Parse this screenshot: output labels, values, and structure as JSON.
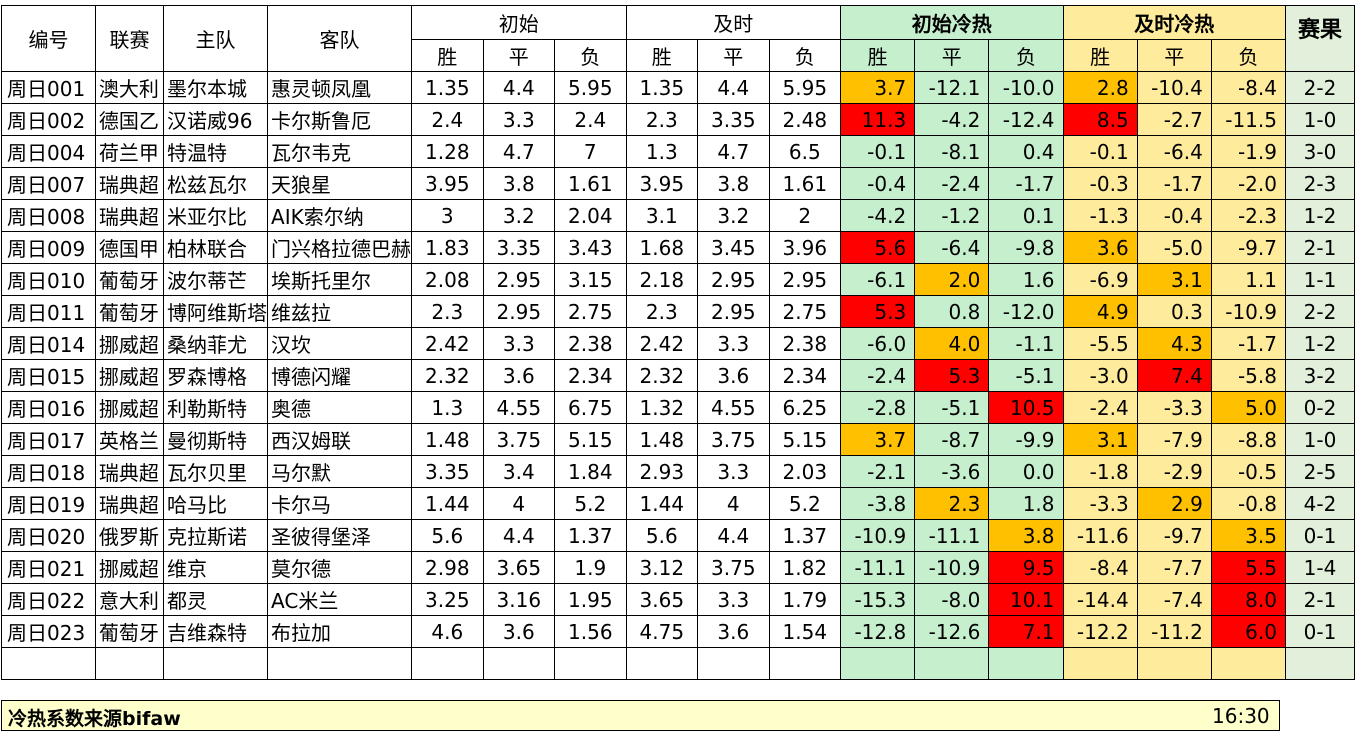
{
  "headers": {
    "id": "编号",
    "league": "联赛",
    "home": "主队",
    "away": "客队",
    "initial": "初始",
    "live": "及时",
    "initial_heat": "初始冷热",
    "live_heat": "及时冷热",
    "result": "赛果",
    "win": "胜",
    "draw": "平",
    "loss": "负"
  },
  "colors": {
    "green": "#c6efce",
    "yellow": "#ffeb9c",
    "orange": "#ffc000",
    "red": "#ff0000",
    "result_bg": "#e2efda",
    "footer_bg": "#ffffcc"
  },
  "rows": [
    {
      "id": "周日001",
      "league": "澳大利",
      "home": "墨尔本城",
      "away": "惠灵顿凤凰",
      "init": [
        "1.35",
        "4.4",
        "5.95"
      ],
      "live": [
        "1.35",
        "4.4",
        "5.95"
      ],
      "iheat": [
        "3.7",
        "-12.1",
        "-10.0"
      ],
      "icol": [
        "orange",
        "green",
        "green"
      ],
      "lheat": [
        "2.8",
        "-10.4",
        "-8.4"
      ],
      "lcol": [
        "orange",
        "yellow",
        "yellow"
      ],
      "result": "2-2"
    },
    {
      "id": "周日002",
      "league": "德国乙",
      "home": "汉诺威96",
      "away": "卡尔斯鲁厄",
      "init": [
        "2.4",
        "3.3",
        "2.4"
      ],
      "live": [
        "2.3",
        "3.35",
        "2.48"
      ],
      "iheat": [
        "11.3",
        "-4.2",
        "-12.4"
      ],
      "icol": [
        "red",
        "green",
        "green"
      ],
      "lheat": [
        "8.5",
        "-2.7",
        "-11.5"
      ],
      "lcol": [
        "red",
        "yellow",
        "yellow"
      ],
      "result": "1-0"
    },
    {
      "id": "周日004",
      "league": "荷兰甲",
      "home": "特温特",
      "away": "瓦尔韦克",
      "init": [
        "1.28",
        "4.7",
        "7"
      ],
      "live": [
        "1.3",
        "4.7",
        "6.5"
      ],
      "iheat": [
        "-0.1",
        "-8.1",
        "0.4"
      ],
      "icol": [
        "green",
        "green",
        "green"
      ],
      "lheat": [
        "-0.1",
        "-6.4",
        "-1.9"
      ],
      "lcol": [
        "yellow",
        "yellow",
        "yellow"
      ],
      "result": "3-0"
    },
    {
      "id": "周日007",
      "league": "瑞典超",
      "home": "松兹瓦尔",
      "away": "天狼星",
      "init": [
        "3.95",
        "3.8",
        "1.61"
      ],
      "live": [
        "3.95",
        "3.8",
        "1.61"
      ],
      "iheat": [
        "-0.4",
        "-2.4",
        "-1.7"
      ],
      "icol": [
        "green",
        "green",
        "green"
      ],
      "lheat": [
        "-0.3",
        "-1.7",
        "-2.0"
      ],
      "lcol": [
        "yellow",
        "yellow",
        "yellow"
      ],
      "result": "2-3"
    },
    {
      "id": "周日008",
      "league": "瑞典超",
      "home": "米亚尔比",
      "away": "AIK索尔纳",
      "init": [
        "3",
        "3.2",
        "2.04"
      ],
      "live": [
        "3.1",
        "3.2",
        "2"
      ],
      "iheat": [
        "-4.2",
        "-1.2",
        "0.1"
      ],
      "icol": [
        "green",
        "green",
        "green"
      ],
      "lheat": [
        "-1.3",
        "-0.4",
        "-2.3"
      ],
      "lcol": [
        "yellow",
        "yellow",
        "yellow"
      ],
      "result": "1-2"
    },
    {
      "id": "周日009",
      "league": "德国甲",
      "home": "柏林联合",
      "away": "门兴格拉德巴赫",
      "init": [
        "1.83",
        "3.35",
        "3.43"
      ],
      "live": [
        "1.68",
        "3.45",
        "3.96"
      ],
      "iheat": [
        "5.6",
        "-6.4",
        "-9.8"
      ],
      "icol": [
        "red",
        "green",
        "green"
      ],
      "lheat": [
        "3.6",
        "-5.0",
        "-9.7"
      ],
      "lcol": [
        "orange",
        "yellow",
        "yellow"
      ],
      "result": "2-1"
    },
    {
      "id": "周日010",
      "league": "葡萄牙",
      "home": "波尔蒂芒",
      "away": "埃斯托里尔",
      "init": [
        "2.08",
        "2.95",
        "3.15"
      ],
      "live": [
        "2.18",
        "2.95",
        "2.95"
      ],
      "iheat": [
        "-6.1",
        "2.0",
        "1.6"
      ],
      "icol": [
        "green",
        "orange",
        "green"
      ],
      "lheat": [
        "-6.9",
        "3.1",
        "1.1"
      ],
      "lcol": [
        "yellow",
        "orange",
        "yellow"
      ],
      "result": "1-1"
    },
    {
      "id": "周日011",
      "league": "葡萄牙",
      "home": "博阿维斯塔",
      "away": "维兹拉",
      "init": [
        "2.3",
        "2.95",
        "2.75"
      ],
      "live": [
        "2.3",
        "2.95",
        "2.75"
      ],
      "iheat": [
        "5.3",
        "0.8",
        "-12.0"
      ],
      "icol": [
        "red",
        "green",
        "green"
      ],
      "lheat": [
        "4.9",
        "0.3",
        "-10.9"
      ],
      "lcol": [
        "orange",
        "yellow",
        "yellow"
      ],
      "result": "2-2"
    },
    {
      "id": "周日014",
      "league": "挪威超",
      "home": "桑纳菲尤",
      "away": "汉坎",
      "init": [
        "2.42",
        "3.3",
        "2.38"
      ],
      "live": [
        "2.42",
        "3.3",
        "2.38"
      ],
      "iheat": [
        "-6.0",
        "4.0",
        "-1.1"
      ],
      "icol": [
        "green",
        "orange",
        "green"
      ],
      "lheat": [
        "-5.5",
        "4.3",
        "-1.7"
      ],
      "lcol": [
        "yellow",
        "orange",
        "yellow"
      ],
      "result": "1-2"
    },
    {
      "id": "周日015",
      "league": "挪威超",
      "home": "罗森博格",
      "away": "博德闪耀",
      "init": [
        "2.32",
        "3.6",
        "2.34"
      ],
      "live": [
        "2.32",
        "3.6",
        "2.34"
      ],
      "iheat": [
        "-2.4",
        "5.3",
        "-5.1"
      ],
      "icol": [
        "green",
        "red",
        "green"
      ],
      "lheat": [
        "-3.0",
        "7.4",
        "-5.8"
      ],
      "lcol": [
        "yellow",
        "red",
        "yellow"
      ],
      "result": "3-2"
    },
    {
      "id": "周日016",
      "league": "挪威超",
      "home": "利勒斯特",
      "away": "奥德",
      "init": [
        "1.3",
        "4.55",
        "6.75"
      ],
      "live": [
        "1.32",
        "4.55",
        "6.25"
      ],
      "iheat": [
        "-2.8",
        "-5.1",
        "10.5"
      ],
      "icol": [
        "green",
        "green",
        "red"
      ],
      "lheat": [
        "-2.4",
        "-3.3",
        "5.0"
      ],
      "lcol": [
        "yellow",
        "yellow",
        "orange"
      ],
      "result": "0-2"
    },
    {
      "id": "周日017",
      "league": "英格兰",
      "home": "曼彻斯特",
      "away": "西汉姆联",
      "init": [
        "1.48",
        "3.75",
        "5.15"
      ],
      "live": [
        "1.48",
        "3.75",
        "5.15"
      ],
      "iheat": [
        "3.7",
        "-8.7",
        "-9.9"
      ],
      "icol": [
        "orange",
        "green",
        "green"
      ],
      "lheat": [
        "3.1",
        "-7.9",
        "-8.8"
      ],
      "lcol": [
        "orange",
        "yellow",
        "yellow"
      ],
      "result": "1-0"
    },
    {
      "id": "周日018",
      "league": "瑞典超",
      "home": "瓦尔贝里",
      "away": "马尔默",
      "init": [
        "3.35",
        "3.4",
        "1.84"
      ],
      "live": [
        "2.93",
        "3.3",
        "2.03"
      ],
      "iheat": [
        "-2.1",
        "-3.6",
        "0.0"
      ],
      "icol": [
        "green",
        "green",
        "green"
      ],
      "lheat": [
        "-1.8",
        "-2.9",
        "-0.5"
      ],
      "lcol": [
        "yellow",
        "yellow",
        "yellow"
      ],
      "result": "2-5"
    },
    {
      "id": "周日019",
      "league": "瑞典超",
      "home": "哈马比",
      "away": "卡尔马",
      "init": [
        "1.44",
        "4",
        "5.2"
      ],
      "live": [
        "1.44",
        "4",
        "5.2"
      ],
      "iheat": [
        "-3.8",
        "2.3",
        "1.8"
      ],
      "icol": [
        "green",
        "orange",
        "green"
      ],
      "lheat": [
        "-3.3",
        "2.9",
        "-0.8"
      ],
      "lcol": [
        "yellow",
        "orange",
        "yellow"
      ],
      "result": "4-2"
    },
    {
      "id": "周日020",
      "league": "俄罗斯",
      "home": "克拉斯诺",
      "away": "圣彼得堡泽",
      "init": [
        "5.6",
        "4.4",
        "1.37"
      ],
      "live": [
        "5.6",
        "4.4",
        "1.37"
      ],
      "iheat": [
        "-10.9",
        "-11.1",
        "3.8"
      ],
      "icol": [
        "green",
        "green",
        "orange"
      ],
      "lheat": [
        "-11.6",
        "-9.7",
        "3.5"
      ],
      "lcol": [
        "yellow",
        "yellow",
        "orange"
      ],
      "result": "0-1"
    },
    {
      "id": "周日021",
      "league": "挪威超",
      "home": "维京",
      "away": "莫尔德",
      "init": [
        "2.98",
        "3.65",
        "1.9"
      ],
      "live": [
        "3.12",
        "3.75",
        "1.82"
      ],
      "iheat": [
        "-11.1",
        "-10.9",
        "9.5"
      ],
      "icol": [
        "green",
        "green",
        "red"
      ],
      "lheat": [
        "-8.4",
        "-7.7",
        "5.5"
      ],
      "lcol": [
        "yellow",
        "yellow",
        "red"
      ],
      "result": "1-4"
    },
    {
      "id": "周日022",
      "league": "意大利",
      "home": "都灵",
      "away": "AC米兰",
      "init": [
        "3.25",
        "3.16",
        "1.95"
      ],
      "live": [
        "3.65",
        "3.3",
        "1.79"
      ],
      "iheat": [
        "-15.3",
        "-8.0",
        "10.1"
      ],
      "icol": [
        "green",
        "green",
        "red"
      ],
      "lheat": [
        "-14.4",
        "-7.4",
        "8.0"
      ],
      "lcol": [
        "yellow",
        "yellow",
        "red"
      ],
      "result": "2-1"
    },
    {
      "id": "周日023",
      "league": "葡萄牙",
      "home": "吉维森特",
      "away": "布拉加",
      "init": [
        "4.6",
        "3.6",
        "1.56"
      ],
      "live": [
        "4.75",
        "3.6",
        "1.54"
      ],
      "iheat": [
        "-12.8",
        "-12.6",
        "7.1"
      ],
      "icol": [
        "green",
        "green",
        "red"
      ],
      "lheat": [
        "-12.2",
        "-11.2",
        "6.0"
      ],
      "lcol": [
        "yellow",
        "yellow",
        "red"
      ],
      "result": "0-1"
    }
  ],
  "footer": {
    "note": "冷热系数来源bifaw",
    "time": "16:30"
  }
}
